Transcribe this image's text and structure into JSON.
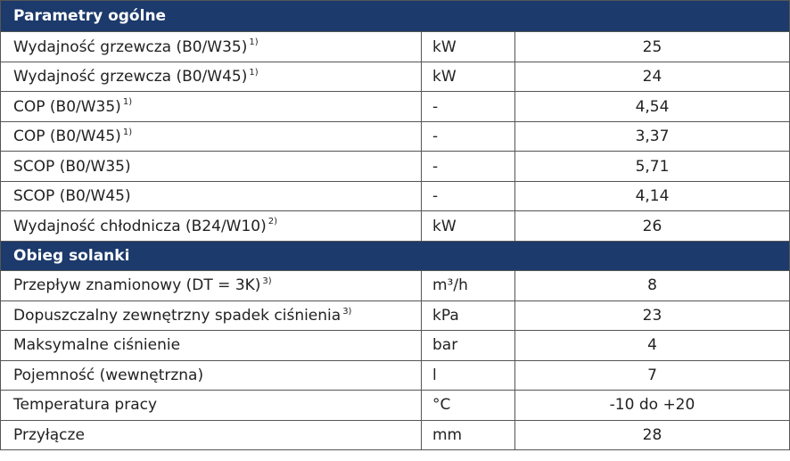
{
  "sections": [
    {
      "title": "Parametry ogólne",
      "rows": [
        {
          "label": "Wydajność grzewcza (B0/W35)",
          "note": "1)",
          "unit": "kW",
          "value": "25"
        },
        {
          "label": "Wydajność grzewcza (B0/W45)",
          "note": "1)",
          "unit": "kW",
          "value": "24"
        },
        {
          "label": "COP (B0/W35)",
          "note": "1)",
          "unit": "-",
          "value": "4,54"
        },
        {
          "label": "COP (B0/W45)",
          "note": "1)",
          "unit": "-",
          "value": "3,37"
        },
        {
          "label": "SCOP (B0/W35)",
          "unit": "-",
          "value": "5,71"
        },
        {
          "label": "SCOP (B0/W45)",
          "unit": "-",
          "value": "4,14"
        },
        {
          "label": "Wydajność chłodnicza (B24/W10)",
          "note": "2)",
          "unit": "kW",
          "value": "26"
        }
      ]
    },
    {
      "title": "Obieg solanki",
      "rows": [
        {
          "label": "Przepływ znamionowy (DT = 3K)",
          "note": "3)",
          "unit": "m³/h",
          "value": "8"
        },
        {
          "label": "Dopuszczalny zewnętrzny spadek ciśnienia",
          "note": "3)",
          "unit": "kPa",
          "value": "23"
        },
        {
          "label": "Maksymalne ciśnienie",
          "unit": "bar",
          "value": "4"
        },
        {
          "label": "Pojemność (wewnętrzna)",
          "unit": "l",
          "value": "7"
        },
        {
          "label": "Temperatura pracy",
          "unit": "°C",
          "value": "-10 do +20"
        },
        {
          "label": "Przyłącze",
          "unit": "mm",
          "value": "28"
        }
      ]
    }
  ]
}
